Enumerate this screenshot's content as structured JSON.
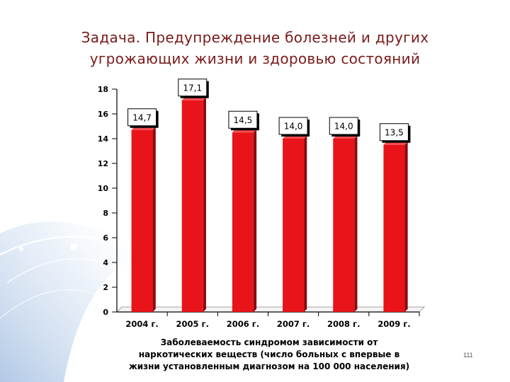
{
  "slide": {
    "title_line1": "Задача. Предупреждение болезней и других",
    "title_line2": "угрожающих жизни и здоровью состояний",
    "caption_line1": "Заболеваемость синдромом зависимости от",
    "caption_line2": "наркотических веществ (число больных с впервые в",
    "caption_line3": "жизни установленным диагнозом на 100 000 населения)",
    "slide_number": "111"
  },
  "colors": {
    "bar": "#e8141a",
    "bar_dark": "#8e0a0e",
    "title": "#7a1a1a",
    "decor": "#b9cde6"
  },
  "chart_data": {
    "type": "bar",
    "categories": [
      "2004 г.",
      "2005 г.",
      "2006 г.",
      "2007 г.",
      "2008 г.",
      "2009 г."
    ],
    "values": [
      14.7,
      17.1,
      14.5,
      14.0,
      14.0,
      13.5
    ],
    "value_labels": [
      "14,7",
      "17,1",
      "14,5",
      "14,0",
      "14,0",
      "13,5"
    ],
    "ylim": [
      0,
      18
    ],
    "yticks": [
      0,
      2,
      4,
      6,
      8,
      10,
      12,
      14,
      16,
      18
    ],
    "grid": false
  }
}
